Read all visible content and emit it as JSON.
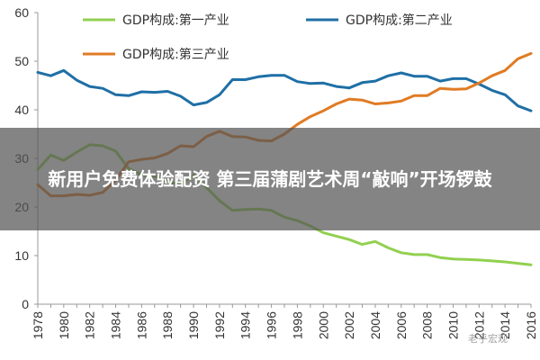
{
  "colors": {
    "series1": "#92D050",
    "series2": "#1F6FA6",
    "series3": "#E07B24",
    "axis": "#999999"
  },
  "chart_data": {
    "type": "line",
    "title": "",
    "xlabel": "",
    "ylabel": "",
    "ylim": [
      0,
      60
    ],
    "xlim": [
      1978,
      2016
    ],
    "yticks": [
      "0",
      "10",
      "20",
      "30",
      "40",
      "50",
      "60"
    ],
    "xticks": [
      "1978",
      "1980",
      "1982",
      "1984",
      "1986",
      "1988",
      "1990",
      "1992",
      "1994",
      "1996",
      "1998",
      "2000",
      "2002",
      "2004",
      "2006",
      "2008",
      "2010",
      "2012",
      "2014",
      "2016"
    ],
    "grid": false,
    "legend_position": "top",
    "x": [
      1978,
      1979,
      1980,
      1981,
      1982,
      1983,
      1984,
      1985,
      1986,
      1987,
      1988,
      1989,
      1990,
      1991,
      1992,
      1993,
      1994,
      1995,
      1996,
      1997,
      1998,
      1999,
      2000,
      2001,
      2002,
      2003,
      2004,
      2005,
      2006,
      2007,
      2008,
      2009,
      2010,
      2011,
      2012,
      2013,
      2014,
      2015,
      2016
    ],
    "series": [
      {
        "name": "GDP构成:第一产业",
        "values": [
          27.7,
          30.7,
          29.6,
          31.3,
          32.8,
          32.6,
          31.5,
          27.9,
          26.6,
          26.3,
          25.2,
          24.6,
          26.6,
          24.0,
          21.3,
          19.3,
          19.5,
          19.6,
          19.3,
          17.9,
          17.2,
          16.1,
          14.7,
          14.0,
          13.3,
          12.3,
          12.9,
          11.6,
          10.6,
          10.2,
          10.2,
          9.6,
          9.3,
          9.2,
          9.1,
          8.9,
          8.7,
          8.4,
          8.1
        ]
      },
      {
        "name": "GDP构成:第二产业",
        "values": [
          47.7,
          47.0,
          48.1,
          46.1,
          44.8,
          44.4,
          43.1,
          42.9,
          43.7,
          43.6,
          43.8,
          42.8,
          41.0,
          41.5,
          43.1,
          46.2,
          46.2,
          46.8,
          47.1,
          47.1,
          45.8,
          45.4,
          45.5,
          44.8,
          44.5,
          45.6,
          45.9,
          47.0,
          47.6,
          46.9,
          46.9,
          45.9,
          46.4,
          46.4,
          45.3,
          44.0,
          43.1,
          40.8,
          39.8
        ]
      },
      {
        "name": "GDP构成:第三产业",
        "values": [
          24.6,
          22.3,
          22.3,
          22.6,
          22.4,
          23.0,
          25.5,
          29.3,
          29.8,
          30.1,
          31.0,
          32.6,
          32.4,
          34.5,
          35.6,
          34.5,
          34.4,
          33.7,
          33.6,
          35.0,
          37.0,
          38.6,
          39.8,
          41.2,
          42.2,
          42.0,
          41.2,
          41.4,
          41.8,
          42.9,
          42.9,
          44.4,
          44.2,
          44.3,
          45.5,
          47.0,
          48.1,
          50.5,
          51.6
        ]
      }
    ]
  },
  "overlay": {
    "banner": "新用户免费体验配资 第三届蒲剧艺术周“敲响”开场锣鼓"
  },
  "watermark": "老乎宏观"
}
